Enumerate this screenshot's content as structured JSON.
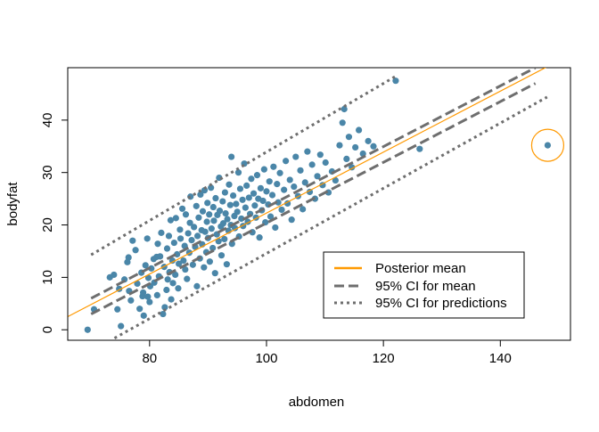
{
  "chart_data": {
    "type": "scatter",
    "title": "",
    "xlabel": "abdomen",
    "ylabel": "bodyfat",
    "xlim": [
      66,
      152
    ],
    "ylim": [
      -2,
      50
    ],
    "x_ticks": [
      80,
      100,
      120,
      140
    ],
    "y_ticks": [
      0,
      10,
      20,
      30,
      40
    ],
    "grid": false,
    "point_color": "#4a86a8",
    "mean_color": "#ff9900",
    "ci_color": "#6e6e6e",
    "highlight_color": "#ff9900",
    "legend": {
      "placement": "bottom-right",
      "entries": [
        {
          "label": "Posterior mean",
          "style": "solid",
          "color": "#ff9900"
        },
        {
          "label": "95% CI for mean",
          "style": "dashed",
          "color": "#6e6e6e"
        },
        {
          "label": "95% CI for predictions",
          "style": "dotted",
          "color": "#6e6e6e"
        }
      ]
    },
    "lines": {
      "posterior_mean": [
        [
          66,
          2.5
        ],
        [
          152,
          52.5
        ]
      ],
      "ci_mean_upper": [
        [
          70,
          6.0
        ],
        [
          146,
          50.0
        ]
      ],
      "ci_mean_lower": [
        [
          70,
          3.0
        ],
        [
          146,
          47.0
        ]
      ],
      "pred_upper": [
        [
          70,
          14.3
        ],
        [
          122,
          48.3
        ]
      ],
      "pred_lower": [
        [
          74,
          -1.6
        ],
        [
          148,
          44.4
        ]
      ]
    },
    "highlighted_point": {
      "x": 148.1,
      "y": 35.2
    },
    "points": [
      [
        69.4,
        0.0
      ],
      [
        70.5,
        3.9
      ],
      [
        73.2,
        10.0
      ],
      [
        73.9,
        10.5
      ],
      [
        74.5,
        3.9
      ],
      [
        74.8,
        7.8
      ],
      [
        75.1,
        0.7
      ],
      [
        75.7,
        9.6
      ],
      [
        76.2,
        12.9
      ],
      [
        76.4,
        13.8
      ],
      [
        76.5,
        7.4
      ],
      [
        76.8,
        5.6
      ],
      [
        77.1,
        17.0
      ],
      [
        77.6,
        15.2
      ],
      [
        77.9,
        8.8
      ],
      [
        78.3,
        4.0
      ],
      [
        78.6,
        10.9
      ],
      [
        78.8,
        6.4
      ],
      [
        78.9,
        7.1
      ],
      [
        79.0,
        2.7
      ],
      [
        79.3,
        12.3
      ],
      [
        79.6,
        17.4
      ],
      [
        79.7,
        6.3
      ],
      [
        79.8,
        9.9
      ],
      [
        80.0,
        5.3
      ],
      [
        80.1,
        8.3
      ],
      [
        80.3,
        11.7
      ],
      [
        80.7,
        13.5
      ],
      [
        80.8,
        9.0
      ],
      [
        81.2,
        13.9
      ],
      [
        81.3,
        6.6
      ],
      [
        81.4,
        16.4
      ],
      [
        81.6,
        10.2
      ],
      [
        81.8,
        14.0
      ],
      [
        82.0,
        18.5
      ],
      [
        82.3,
        3.0
      ],
      [
        82.5,
        12.0
      ],
      [
        82.6,
        4.3
      ],
      [
        82.9,
        7.6
      ],
      [
        83.0,
        15.5
      ],
      [
        83.1,
        9.6
      ],
      [
        83.3,
        17.9
      ],
      [
        83.4,
        11.0
      ],
      [
        83.6,
        20.9
      ],
      [
        83.7,
        5.8
      ],
      [
        83.9,
        13.2
      ],
      [
        84.0,
        8.9
      ],
      [
        84.2,
        16.6
      ],
      [
        84.4,
        10.5
      ],
      [
        84.5,
        21.3
      ],
      [
        84.7,
        14.4
      ],
      [
        84.9,
        7.9
      ],
      [
        85.0,
        12.6
      ],
      [
        85.2,
        19.1
      ],
      [
        85.3,
        17.4
      ],
      [
        85.6,
        23.1
      ],
      [
        85.8,
        13.2
      ],
      [
        86.0,
        16.0
      ],
      [
        86.1,
        11.5
      ],
      [
        86.2,
        22.0
      ],
      [
        86.4,
        9.7
      ],
      [
        86.6,
        18.4
      ],
      [
        86.8,
        14.7
      ],
      [
        86.9,
        20.4
      ],
      [
        87.0,
        25.4
      ],
      [
        87.2,
        17.1
      ],
      [
        87.4,
        12.4
      ],
      [
        87.6,
        19.6
      ],
      [
        87.8,
        15.8
      ],
      [
        88.0,
        23.6
      ],
      [
        88.1,
        8.3
      ],
      [
        88.2,
        17.9
      ],
      [
        88.4,
        21.4
      ],
      [
        88.6,
        13.6
      ],
      [
        88.7,
        25.8
      ],
      [
        88.9,
        19.0
      ],
      [
        89.0,
        16.3
      ],
      [
        89.1,
        22.6
      ],
      [
        89.3,
        11.9
      ],
      [
        89.4,
        26.6
      ],
      [
        89.5,
        18.7
      ],
      [
        89.7,
        14.8
      ],
      [
        89.8,
        20.6
      ],
      [
        89.9,
        24.2
      ],
      [
        90.0,
        17.5
      ],
      [
        90.2,
        22.0
      ],
      [
        90.3,
        13.0
      ],
      [
        90.5,
        27.1
      ],
      [
        90.6,
        19.3
      ],
      [
        90.8,
        15.6
      ],
      [
        90.9,
        23.4
      ],
      [
        91.0,
        20.8
      ],
      [
        91.2,
        10.8
      ],
      [
        91.3,
        25.1
      ],
      [
        91.5,
        18.2
      ],
      [
        91.6,
        21.9
      ],
      [
        91.8,
        16.9
      ],
      [
        91.9,
        29.0
      ],
      [
        92.0,
        22.7
      ],
      [
        92.2,
        19.7
      ],
      [
        92.3,
        14.2
      ],
      [
        92.5,
        24.5
      ],
      [
        92.6,
        20.3
      ],
      [
        92.8,
        17.3
      ],
      [
        92.9,
        26.2
      ],
      [
        93.0,
        22.2
      ],
      [
        93.2,
        12.5
      ],
      [
        93.3,
        21.1
      ],
      [
        93.5,
        18.9
      ],
      [
        93.6,
        27.7
      ],
      [
        93.8,
        23.8
      ],
      [
        93.9,
        20.0
      ],
      [
        94.0,
        33.0
      ],
      [
        94.1,
        16.4
      ],
      [
        94.3,
        25.6
      ],
      [
        94.5,
        21.7
      ],
      [
        94.6,
        19.4
      ],
      [
        94.8,
        24.0
      ],
      [
        95.0,
        22.5
      ],
      [
        95.2,
        30.0
      ],
      [
        95.3,
        17.8
      ],
      [
        95.5,
        26.9
      ],
      [
        95.7,
        21.2
      ],
      [
        95.9,
        24.8
      ],
      [
        96.0,
        19.8
      ],
      [
        96.2,
        31.7
      ],
      [
        96.4,
        23.3
      ],
      [
        96.6,
        27.5
      ],
      [
        96.8,
        20.6
      ],
      [
        97.0,
        25.2
      ],
      [
        97.2,
        22.1
      ],
      [
        97.4,
        28.8
      ],
      [
        97.6,
        18.6
      ],
      [
        97.8,
        26.0
      ],
      [
        98.0,
        23.7
      ],
      [
        98.2,
        21.4
      ],
      [
        98.4,
        29.5
      ],
      [
        98.6,
        25.0
      ],
      [
        98.8,
        17.6
      ],
      [
        99.0,
        27.0
      ],
      [
        99.2,
        22.8
      ],
      [
        99.4,
        24.6
      ],
      [
        99.6,
        30.6
      ],
      [
        99.8,
        20.5
      ],
      [
        100.0,
        26.4
      ],
      [
        100.3,
        23.9
      ],
      [
        100.5,
        28.3
      ],
      [
        100.7,
        21.6
      ],
      [
        101.0,
        25.7
      ],
      [
        101.2,
        31.1
      ],
      [
        101.5,
        19.5
      ],
      [
        101.8,
        27.8
      ],
      [
        102.0,
        24.3
      ],
      [
        102.3,
        29.9
      ],
      [
        102.6,
        22.9
      ],
      [
        103.0,
        26.7
      ],
      [
        103.3,
        32.2
      ],
      [
        103.6,
        24.1
      ],
      [
        104.0,
        28.6
      ],
      [
        104.3,
        21.0
      ],
      [
        104.7,
        27.3
      ],
      [
        105.0,
        33.0
      ],
      [
        105.4,
        25.5
      ],
      [
        105.8,
        30.4
      ],
      [
        106.2,
        23.0
      ],
      [
        106.6,
        28.1
      ],
      [
        107.0,
        34.0
      ],
      [
        107.4,
        26.3
      ],
      [
        107.8,
        31.5
      ],
      [
        108.3,
        25.0
      ],
      [
        108.7,
        29.3
      ],
      [
        109.2,
        33.4
      ],
      [
        109.6,
        27.6
      ],
      [
        110.1,
        31.9
      ],
      [
        110.6,
        26.2
      ],
      [
        111.2,
        30.2
      ],
      [
        111.8,
        28.5
      ],
      [
        112.5,
        35.2
      ],
      [
        113.0,
        39.5
      ],
      [
        113.3,
        42.1
      ],
      [
        113.7,
        32.6
      ],
      [
        114.1,
        36.8
      ],
      [
        114.6,
        31.0
      ],
      [
        115.2,
        34.8
      ],
      [
        115.8,
        38.1
      ],
      [
        116.5,
        33.6
      ],
      [
        117.4,
        36.0
      ],
      [
        118.3,
        35.0
      ],
      [
        122.1,
        47.5
      ],
      [
        126.2,
        34.5
      ]
    ]
  }
}
